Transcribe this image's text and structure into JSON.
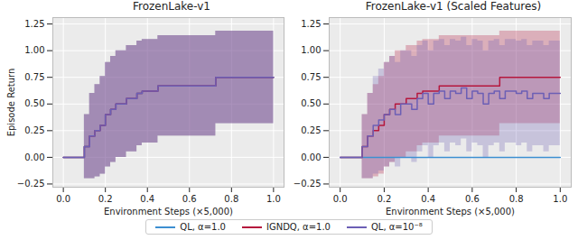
{
  "chart_data": [
    {
      "type": "line",
      "title": "FrozenLake-v1",
      "xlabel": "Environment Steps (×5,000)",
      "ylabel": "Episode Return",
      "xlim": [
        -0.05,
        1.05
      ],
      "ylim": [
        -0.28,
        1.31
      ],
      "xticks": [
        {
          "value": 0,
          "label": "0.0"
        },
        0.2,
        0.4,
        0.6,
        0.8,
        {
          "value": 1,
          "label": "1.0"
        }
      ],
      "yticks": [
        {
          "value": -0.25,
          "label": "−0.25"
        },
        {
          "value": 0,
          "label": "0.00"
        },
        0.25,
        {
          "value": 0.5,
          "label": "0.50"
        },
        0.75,
        {
          "value": 1,
          "label": "1.00"
        },
        1.25
      ],
      "grid": true,
      "x": [
        0,
        0.025,
        0.05,
        0.075,
        0.1,
        0.125,
        0.15,
        0.175,
        0.2,
        0.225,
        0.25,
        0.275,
        0.3,
        0.325,
        0.35,
        0.375,
        0.4,
        0.425,
        0.45,
        0.475,
        0.5,
        0.525,
        0.55,
        0.575,
        0.6,
        0.625,
        0.65,
        0.675,
        0.7,
        0.725,
        0.75,
        0.775,
        0.8,
        0.825,
        0.85,
        0.875,
        0.9,
        0.925,
        0.95,
        0.975,
        1.0
      ],
      "series": [
        {
          "name": "QL, α=1.0",
          "color": "#3d8fd1",
          "values": [
            0,
            0,
            0,
            0,
            0.1,
            0.2,
            0.25,
            0.3,
            0.4,
            0.45,
            0.5,
            0.5,
            0.55,
            0.55,
            0.6,
            0.62,
            0.62,
            0.62,
            0.67,
            0.67,
            0.67,
            0.67,
            0.67,
            0.67,
            0.67,
            0.67,
            0.67,
            0.67,
            0.67,
            0.75,
            0.75,
            0.75,
            0.75,
            0.75,
            0.75,
            0.75,
            0.75,
            0.75,
            0.75,
            0.75,
            0.75
          ],
          "upper": [
            0,
            0,
            0,
            0,
            0.4,
            0.6,
            0.683,
            0.758,
            0.89,
            0.947,
            1.0,
            1.0,
            1.047,
            1.047,
            1.09,
            1.105,
            1.105,
            1.105,
            1.14,
            1.14,
            1.14,
            1.14,
            1.14,
            1.14,
            1.14,
            1.14,
            1.14,
            1.14,
            1.14,
            1.183,
            1.183,
            1.183,
            1.183,
            1.183,
            1.183,
            1.183,
            1.183,
            1.183,
            1.183,
            1.183,
            1.183
          ],
          "lower": [
            0,
            0,
            0,
            0,
            -0.2,
            -0.2,
            -0.183,
            -0.158,
            -0.09,
            -0.047,
            0,
            0,
            0.053,
            0.053,
            0.11,
            0.135,
            0.135,
            0.135,
            0.2,
            0.2,
            0.2,
            0.2,
            0.2,
            0.2,
            0.2,
            0.2,
            0.2,
            0.2,
            0.2,
            0.317,
            0.317,
            0.317,
            0.317,
            0.317,
            0.317,
            0.317,
            0.317,
            0.317,
            0.317,
            0.317,
            0.317
          ]
        },
        {
          "name": "IGNDQ, α=1.0",
          "color": "#b5173d",
          "values": [
            0,
            0,
            0,
            0,
            0.1,
            0.2,
            0.25,
            0.3,
            0.4,
            0.45,
            0.5,
            0.5,
            0.55,
            0.55,
            0.6,
            0.62,
            0.62,
            0.62,
            0.67,
            0.67,
            0.67,
            0.67,
            0.67,
            0.67,
            0.67,
            0.67,
            0.67,
            0.67,
            0.67,
            0.75,
            0.75,
            0.75,
            0.75,
            0.75,
            0.75,
            0.75,
            0.75,
            0.75,
            0.75,
            0.75,
            0.75
          ],
          "upper": [
            0,
            0,
            0,
            0,
            0.4,
            0.6,
            0.683,
            0.758,
            0.89,
            0.947,
            1.0,
            1.0,
            1.047,
            1.047,
            1.09,
            1.105,
            1.105,
            1.105,
            1.14,
            1.14,
            1.14,
            1.14,
            1.14,
            1.14,
            1.14,
            1.14,
            1.14,
            1.14,
            1.14,
            1.183,
            1.183,
            1.183,
            1.183,
            1.183,
            1.183,
            1.183,
            1.183,
            1.183,
            1.183,
            1.183,
            1.183
          ],
          "lower": [
            0,
            0,
            0,
            0,
            -0.2,
            -0.2,
            -0.183,
            -0.158,
            -0.09,
            -0.047,
            0,
            0,
            0.053,
            0.053,
            0.11,
            0.135,
            0.135,
            0.135,
            0.2,
            0.2,
            0.2,
            0.2,
            0.2,
            0.2,
            0.2,
            0.2,
            0.2,
            0.2,
            0.2,
            0.317,
            0.317,
            0.317,
            0.317,
            0.317,
            0.317,
            0.317,
            0.317,
            0.317,
            0.317,
            0.317,
            0.317
          ]
        },
        {
          "name": "QL, α=10⁻⁸",
          "color": "#6c5fb5",
          "values": [
            0,
            0,
            0,
            0,
            0.1,
            0.2,
            0.25,
            0.3,
            0.4,
            0.45,
            0.5,
            0.5,
            0.55,
            0.55,
            0.6,
            0.62,
            0.62,
            0.62,
            0.67,
            0.67,
            0.67,
            0.67,
            0.67,
            0.67,
            0.67,
            0.67,
            0.67,
            0.67,
            0.67,
            0.75,
            0.75,
            0.75,
            0.75,
            0.75,
            0.75,
            0.75,
            0.75,
            0.75,
            0.75,
            0.75,
            0.75
          ],
          "upper": [
            0,
            0,
            0,
            0,
            0.4,
            0.6,
            0.683,
            0.758,
            0.89,
            0.947,
            1.0,
            1.0,
            1.047,
            1.047,
            1.09,
            1.105,
            1.105,
            1.105,
            1.14,
            1.14,
            1.14,
            1.14,
            1.14,
            1.14,
            1.14,
            1.14,
            1.14,
            1.14,
            1.14,
            1.183,
            1.183,
            1.183,
            1.183,
            1.183,
            1.183,
            1.183,
            1.183,
            1.183,
            1.183,
            1.183,
            1.183
          ],
          "lower": [
            0,
            0,
            0,
            0,
            -0.2,
            -0.2,
            -0.183,
            -0.158,
            -0.09,
            -0.047,
            0,
            0,
            0.053,
            0.053,
            0.11,
            0.135,
            0.135,
            0.135,
            0.2,
            0.2,
            0.2,
            0.2,
            0.2,
            0.2,
            0.2,
            0.2,
            0.2,
            0.2,
            0.2,
            0.317,
            0.317,
            0.317,
            0.317,
            0.317,
            0.317,
            0.317,
            0.317,
            0.317,
            0.317,
            0.317,
            0.317
          ]
        }
      ]
    },
    {
      "type": "line",
      "title": "FrozenLake-v1 (Scaled Features)",
      "xlabel": "Environment Steps (×5,000)",
      "xlim": [
        -0.05,
        1.05
      ],
      "ylim": [
        -0.28,
        1.31
      ],
      "xticks": [
        {
          "value": 0,
          "label": "0.0"
        },
        0.2,
        0.4,
        0.6,
        0.8,
        {
          "value": 1,
          "label": "1.0"
        }
      ],
      "yticks": [
        {
          "value": -0.25,
          "label": "−0.25"
        },
        {
          "value": 0,
          "label": "0.00"
        },
        0.25,
        {
          "value": 0.5,
          "label": "0.50"
        },
        0.75,
        {
          "value": 1,
          "label": "1.00"
        },
        1.25
      ],
      "grid": true,
      "legend": "bottom",
      "x": [
        0,
        0.025,
        0.05,
        0.075,
        0.1,
        0.125,
        0.15,
        0.175,
        0.2,
        0.225,
        0.25,
        0.275,
        0.3,
        0.325,
        0.35,
        0.375,
        0.4,
        0.425,
        0.45,
        0.475,
        0.5,
        0.525,
        0.55,
        0.575,
        0.6,
        0.625,
        0.65,
        0.675,
        0.7,
        0.725,
        0.75,
        0.775,
        0.8,
        0.825,
        0.85,
        0.875,
        0.9,
        0.925,
        0.95,
        0.975,
        1.0
      ],
      "series": [
        {
          "name": "QL, α=1.0",
          "color": "#3d8fd1",
          "values": [
            0,
            0,
            0,
            0,
            0,
            0,
            0,
            0,
            0,
            0,
            0,
            0,
            0,
            0,
            0,
            0,
            0,
            0,
            0,
            0,
            0,
            0,
            0,
            0,
            0,
            0,
            0,
            0,
            0,
            0,
            0,
            0,
            0,
            0,
            0,
            0,
            0,
            0,
            0,
            0,
            0
          ],
          "upper": [
            0,
            0,
            0,
            0,
            0,
            0,
            0,
            0,
            0,
            0,
            0,
            0,
            0,
            0,
            0,
            0,
            0,
            0,
            0,
            0,
            0,
            0,
            0,
            0,
            0,
            0,
            0,
            0,
            0,
            0,
            0,
            0,
            0,
            0,
            0,
            0,
            0,
            0,
            0,
            0,
            0
          ],
          "lower": [
            0,
            0,
            0,
            0,
            0,
            0,
            0,
            0,
            0,
            0,
            0,
            0,
            0,
            0,
            0,
            0,
            0,
            0,
            0,
            0,
            0,
            0,
            0,
            0,
            0,
            0,
            0,
            0,
            0,
            0,
            0,
            0,
            0,
            0,
            0,
            0,
            0,
            0,
            0,
            0,
            0
          ]
        },
        {
          "name": "IGNDQ, α=1.0",
          "color": "#b5173d",
          "values": [
            0,
            0,
            0,
            0,
            0.1,
            0.2,
            0.25,
            0.3,
            0.4,
            0.45,
            0.5,
            0.5,
            0.55,
            0.55,
            0.6,
            0.62,
            0.62,
            0.62,
            0.67,
            0.67,
            0.67,
            0.67,
            0.67,
            0.67,
            0.67,
            0.67,
            0.67,
            0.67,
            0.67,
            0.75,
            0.75,
            0.75,
            0.75,
            0.75,
            0.75,
            0.75,
            0.75,
            0.75,
            0.75,
            0.75,
            0.75
          ],
          "upper": [
            0,
            0,
            0,
            0,
            0.4,
            0.6,
            0.683,
            0.758,
            0.89,
            0.947,
            1.0,
            1.0,
            1.047,
            1.047,
            1.09,
            1.105,
            1.105,
            1.105,
            1.14,
            1.14,
            1.14,
            1.14,
            1.14,
            1.14,
            1.14,
            1.14,
            1.14,
            1.14,
            1.14,
            1.183,
            1.183,
            1.183,
            1.183,
            1.183,
            1.183,
            1.183,
            1.183,
            1.183,
            1.183,
            1.183,
            1.183
          ],
          "lower": [
            0,
            0,
            0,
            0,
            -0.2,
            -0.2,
            -0.183,
            -0.158,
            -0.09,
            -0.047,
            0,
            0,
            0.053,
            0.053,
            0.11,
            0.135,
            0.135,
            0.135,
            0.2,
            0.2,
            0.2,
            0.2,
            0.2,
            0.2,
            0.2,
            0.2,
            0.2,
            0.2,
            0.2,
            0.317,
            0.317,
            0.317,
            0.317,
            0.317,
            0.317,
            0.317,
            0.317,
            0.317,
            0.317,
            0.317,
            0.317
          ]
        },
        {
          "name": "QL, α=10⁻⁸",
          "color": "#6c5fb5",
          "values": [
            0,
            0,
            0,
            0,
            0.1,
            0.2,
            0.3,
            0.35,
            0.4,
            0.45,
            0.4,
            0.5,
            0.5,
            0.45,
            0.55,
            0.6,
            0.5,
            0.6,
            0.62,
            0.55,
            0.62,
            0.6,
            0.65,
            0.55,
            0.62,
            0.6,
            0.5,
            0.6,
            0.62,
            0.55,
            0.62,
            0.62,
            0.6,
            0.62,
            0.55,
            0.6,
            0.6,
            0.55,
            0.6,
            0.6,
            0.6
          ],
          "upper": [
            0,
            0,
            0,
            0,
            0.4,
            0.6,
            0.758,
            0.827,
            0.89,
            0.947,
            0.89,
            1.0,
            1.0,
            0.947,
            1.047,
            1.09,
            1.0,
            1.09,
            1.105,
            1.047,
            1.105,
            1.09,
            1.127,
            1.047,
            1.105,
            1.09,
            1.0,
            1.09,
            1.105,
            1.047,
            1.105,
            1.105,
            1.09,
            1.105,
            1.047,
            1.09,
            1.09,
            1.047,
            1.09,
            1.09,
            1.09
          ],
          "lower": [
            0,
            0,
            0,
            0,
            -0.2,
            -0.2,
            -0.158,
            -0.127,
            -0.09,
            -0.047,
            -0.09,
            0,
            0,
            -0.047,
            0.053,
            0.11,
            0,
            0.11,
            0.135,
            0.053,
            0.135,
            0.11,
            0.173,
            0.053,
            0.135,
            0.11,
            0,
            0.11,
            0.135,
            0.053,
            0.135,
            0.135,
            0.11,
            0.135,
            0.053,
            0.11,
            0.11,
            0.053,
            0.11,
            0.11,
            0.11
          ]
        }
      ]
    }
  ]
}
